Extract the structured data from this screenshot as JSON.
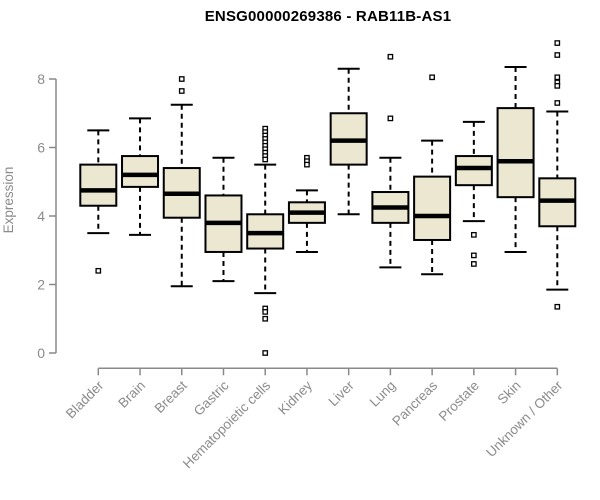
{
  "chart_data": {
    "type": "boxplot",
    "title": "ENSG00000269386 - RAB11B-AS1",
    "ylabel": "Expression",
    "xlabel": "",
    "ylim": [
      0,
      8
    ],
    "yticks": [
      0,
      2,
      4,
      6,
      8
    ],
    "grid": false,
    "legend": "none",
    "outlier_marker": "open-square",
    "whisker_style": "dashed",
    "box_fill_color": "#ece7d0",
    "box_stroke_color": "#000000",
    "axis_color": "#898989",
    "tick_label_color": "#8b8b8b",
    "categories": [
      "Bladder",
      "Brain",
      "Breast",
      "Gastric",
      "Hematopoietic cells",
      "Kidney",
      "Liver",
      "Lung",
      "Pancreas",
      "Prostate",
      "Skin",
      "Unknown / Other"
    ],
    "boxes": [
      {
        "category": "Bladder",
        "whisker_low": 3.5,
        "q1": 4.3,
        "median": 4.75,
        "q3": 5.5,
        "whisker_high": 6.5,
        "outliers": [
          2.4
        ]
      },
      {
        "category": "Brain",
        "whisker_low": 3.45,
        "q1": 4.85,
        "median": 5.2,
        "q3": 5.75,
        "whisker_high": 6.85,
        "outliers": []
      },
      {
        "category": "Breast",
        "whisker_low": 1.95,
        "q1": 3.95,
        "median": 4.65,
        "q3": 5.4,
        "whisker_high": 7.25,
        "outliers": [
          8.0,
          7.65
        ]
      },
      {
        "category": "Gastric",
        "whisker_low": 2.1,
        "q1": 2.95,
        "median": 3.8,
        "q3": 4.6,
        "whisker_high": 5.7,
        "outliers": []
      },
      {
        "category": "Hematopoietic cells",
        "whisker_low": 1.75,
        "q1": 3.05,
        "median": 3.5,
        "q3": 4.05,
        "whisker_high": 5.5,
        "outliers": [
          6.55,
          6.45,
          6.35,
          6.25,
          6.15,
          6.05,
          5.95,
          5.85,
          5.75,
          5.65,
          1.3,
          1.2,
          1.0,
          0.0
        ]
      },
      {
        "category": "Kidney",
        "whisker_low": 2.95,
        "q1": 3.8,
        "median": 4.1,
        "q3": 4.4,
        "whisker_high": 4.75,
        "outliers": [
          5.7,
          5.6,
          5.5
        ]
      },
      {
        "category": "Liver",
        "whisker_low": 4.05,
        "q1": 5.5,
        "median": 6.2,
        "q3": 7.0,
        "whisker_high": 8.3,
        "outliers": []
      },
      {
        "category": "Lung",
        "whisker_low": 2.5,
        "q1": 3.8,
        "median": 4.25,
        "q3": 4.7,
        "whisker_high": 5.7,
        "outliers": [
          8.65,
          6.85
        ]
      },
      {
        "category": "Pancreas",
        "whisker_low": 2.3,
        "q1": 3.3,
        "median": 4.0,
        "q3": 5.15,
        "whisker_high": 6.2,
        "outliers": [
          8.05
        ]
      },
      {
        "category": "Prostate",
        "whisker_low": 3.85,
        "q1": 4.9,
        "median": 5.4,
        "q3": 5.75,
        "whisker_high": 6.75,
        "outliers": [
          3.45,
          2.85,
          2.6
        ]
      },
      {
        "category": "Skin",
        "whisker_low": 2.95,
        "q1": 4.55,
        "median": 5.6,
        "q3": 7.15,
        "whisker_high": 8.35,
        "outliers": []
      },
      {
        "category": "Unknown / Other",
        "whisker_low": 1.85,
        "q1": 3.7,
        "median": 4.45,
        "q3": 5.1,
        "whisker_high": 7.05,
        "outliers": [
          9.05,
          8.7,
          8.05,
          7.9,
          7.8,
          7.3,
          1.35
        ]
      }
    ]
  }
}
